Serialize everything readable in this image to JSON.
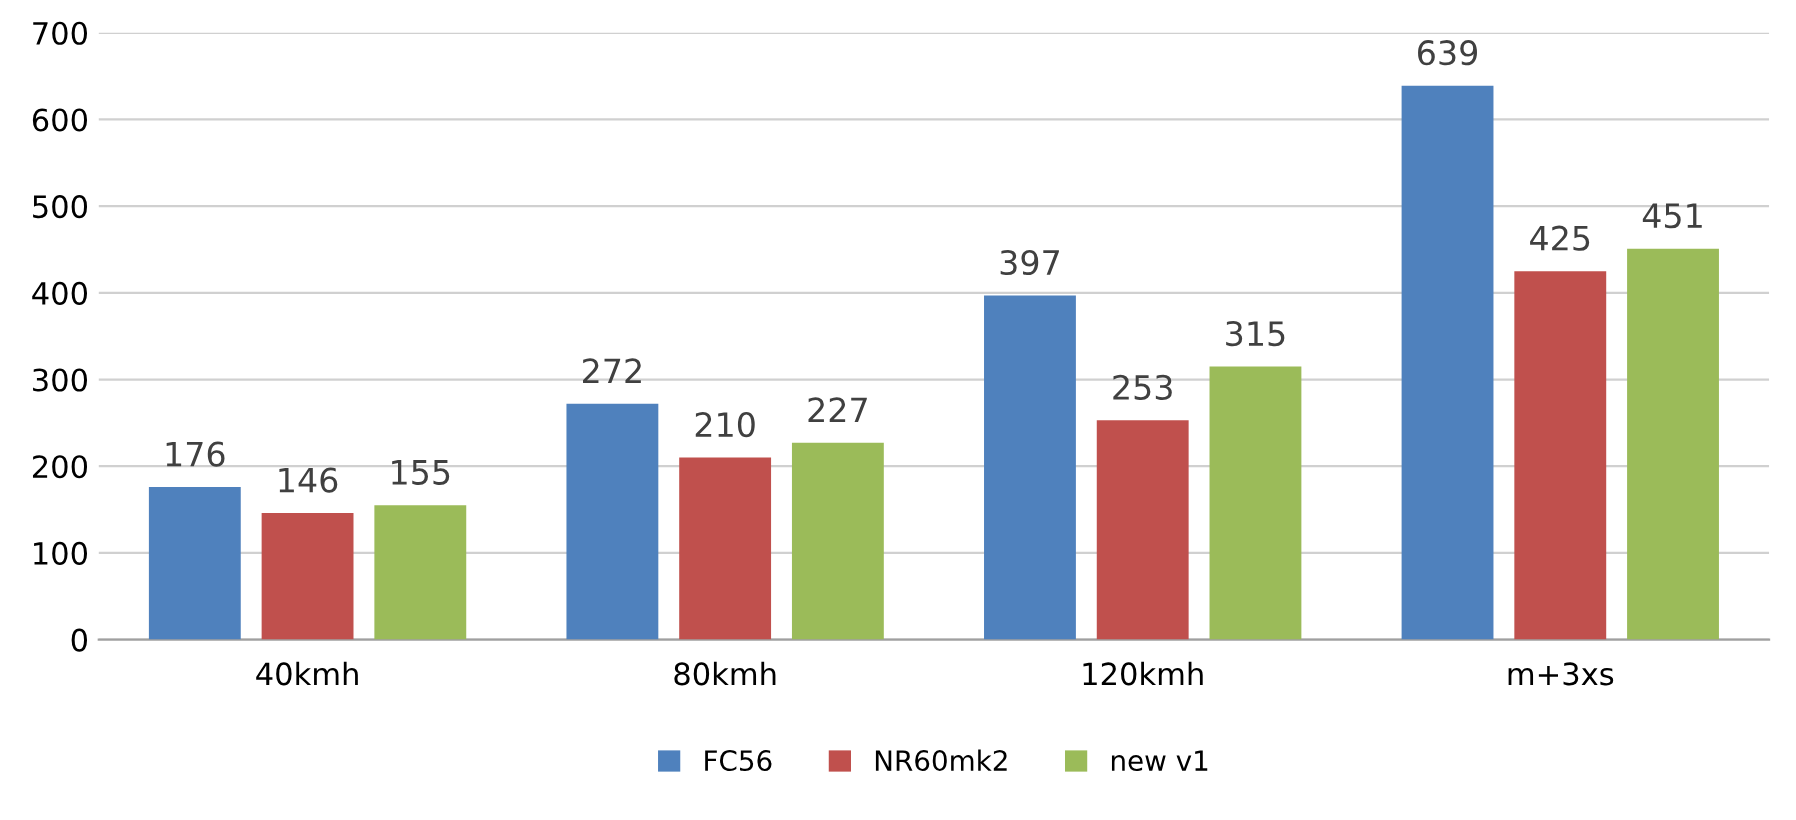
{
  "chart_data": {
    "type": "bar",
    "categories": [
      "40kmh",
      "80kmh",
      "120kmh",
      "m+3xs"
    ],
    "series": [
      {
        "name": "FC56",
        "color": "#4f81bd",
        "values": [
          176,
          272,
          397,
          639
        ]
      },
      {
        "name": "NR60mk2",
        "color": "#c0504d",
        "values": [
          146,
          210,
          253,
          425
        ]
      },
      {
        "name": "new v1",
        "color": "#9bbb59",
        "values": [
          155,
          227,
          315,
          451
        ]
      }
    ],
    "ylim": [
      0,
      700
    ],
    "yticks": [
      0,
      100,
      200,
      300,
      400,
      500,
      600,
      700
    ],
    "grid": "y",
    "legend": "bottom",
    "data_labels": true
  }
}
